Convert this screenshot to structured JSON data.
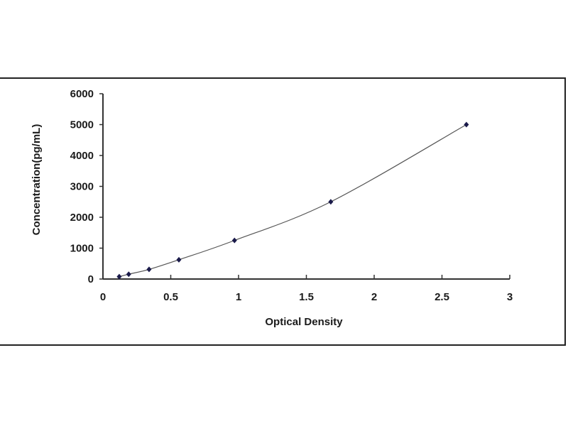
{
  "chart_data": {
    "type": "scatter",
    "title": "",
    "xlabel": "Optical Density",
    "ylabel": "Concentration(pg/mL)",
    "xlim": [
      0,
      3
    ],
    "ylim": [
      0,
      6000
    ],
    "xticks": [
      "0",
      "0.5",
      "1",
      "1.5",
      "2",
      "2.5",
      "3"
    ],
    "yticks": [
      "0",
      "1000",
      "2000",
      "3000",
      "4000",
      "5000",
      "6000"
    ],
    "grid": false,
    "legend": "none",
    "fit_line": "smooth curve",
    "colors": {
      "points": "#1a1a4a",
      "line": "#555555",
      "axes": "#333333"
    },
    "series": [
      {
        "x": [
          0.12,
          0.19,
          0.34,
          0.56,
          0.97,
          1.68,
          2.68
        ],
        "y": [
          78,
          156,
          312,
          625,
          1250,
          2500,
          5000
        ]
      }
    ]
  }
}
